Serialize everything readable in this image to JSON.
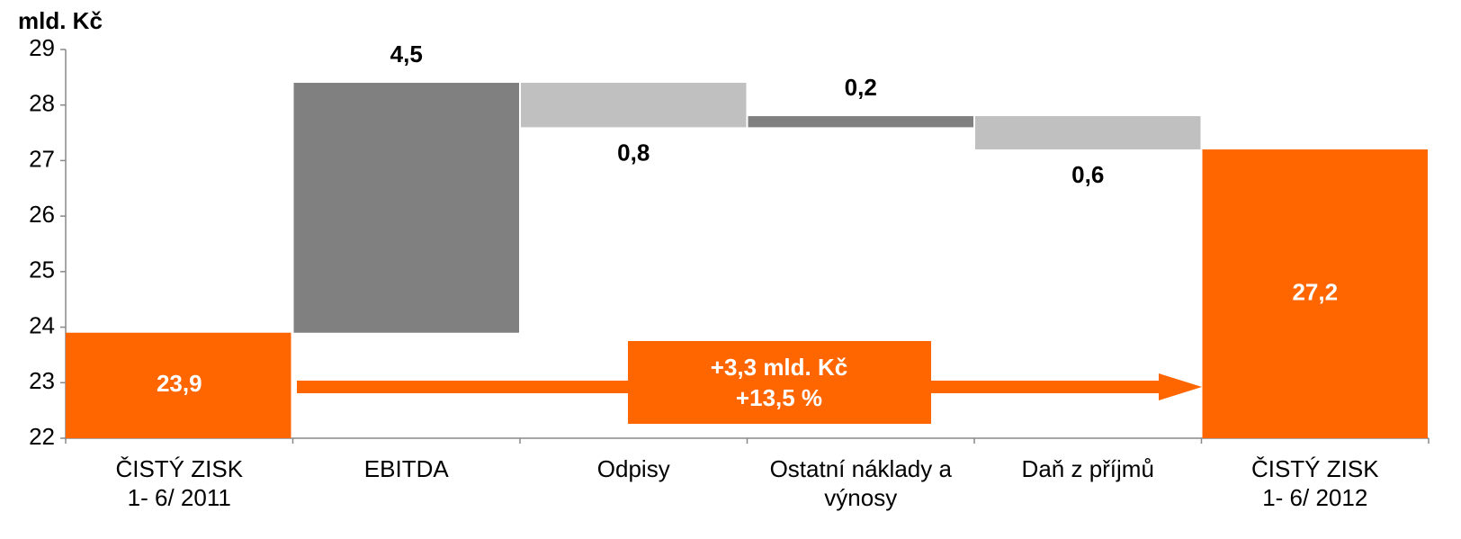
{
  "chart_data": {
    "type": "waterfall",
    "ylabel": "mld. Kč",
    "categories": [
      [
        "ČISTÝ ZISK",
        "1- 6/ 2011"
      ],
      [
        "EBITDA"
      ],
      [
        "Odpisy"
      ],
      [
        "Ostatní náklady a",
        "výnosy"
      ],
      [
        "Daň z příjmů"
      ],
      [
        "ČISTÝ ZISK",
        "1- 6/ 2012"
      ]
    ],
    "values": [
      23.9,
      4.5,
      -0.8,
      0.2,
      -0.6,
      27.2
    ],
    "value_labels": [
      "23,9",
      "4,5",
      "0,8",
      "0,2",
      "0,6",
      "27,2"
    ],
    "measure": [
      "absolute",
      "relative",
      "relative",
      "relative",
      "relative",
      "absolute"
    ],
    "colors": {
      "total": "#ff6600",
      "increase": "#808080",
      "decrease": "#c0c0c0"
    },
    "ylim": [
      22,
      29
    ],
    "yticks": [
      22,
      23,
      24,
      25,
      26,
      27,
      28,
      29
    ],
    "grid": false,
    "annotation": [
      "+3,3 mld. Kč",
      "+13,5 %"
    ]
  }
}
